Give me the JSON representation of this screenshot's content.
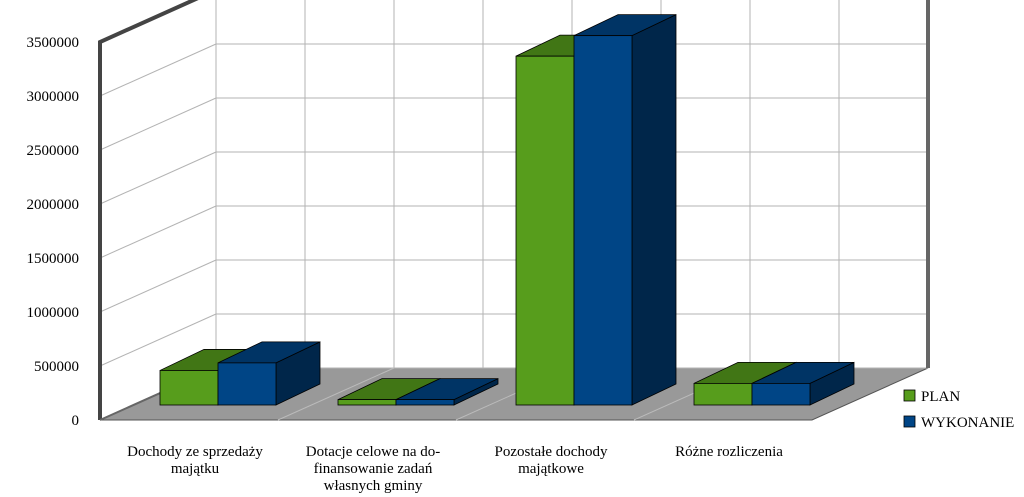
{
  "chart_data": {
    "type": "bar",
    "style": "3d-clustered",
    "categories": [
      [
        "Dochody ze sprzedaży",
        "majątku"
      ],
      [
        "Dotacje celowe na do-",
        "finansowanie zadań",
        "własnych gminy"
      ],
      [
        "Pozostałe dochody",
        "majątkowe"
      ],
      [
        "Różne rozliczenia"
      ]
    ],
    "series": [
      {
        "name": "PLAN",
        "color": "#579d1c",
        "values": [
          320000,
          50000,
          3230000,
          200000
        ]
      },
      {
        "name": "WYKONANIE",
        "color": "#004586",
        "values": [
          390000,
          50000,
          3420000,
          200000
        ]
      }
    ],
    "ylim": [
      0,
      3500000
    ],
    "yticks": [
      "0",
      "500000",
      "1000000",
      "1500000",
      "2000000",
      "2500000",
      "3000000",
      "3500000"
    ],
    "grid": true,
    "legend_position": "right"
  }
}
